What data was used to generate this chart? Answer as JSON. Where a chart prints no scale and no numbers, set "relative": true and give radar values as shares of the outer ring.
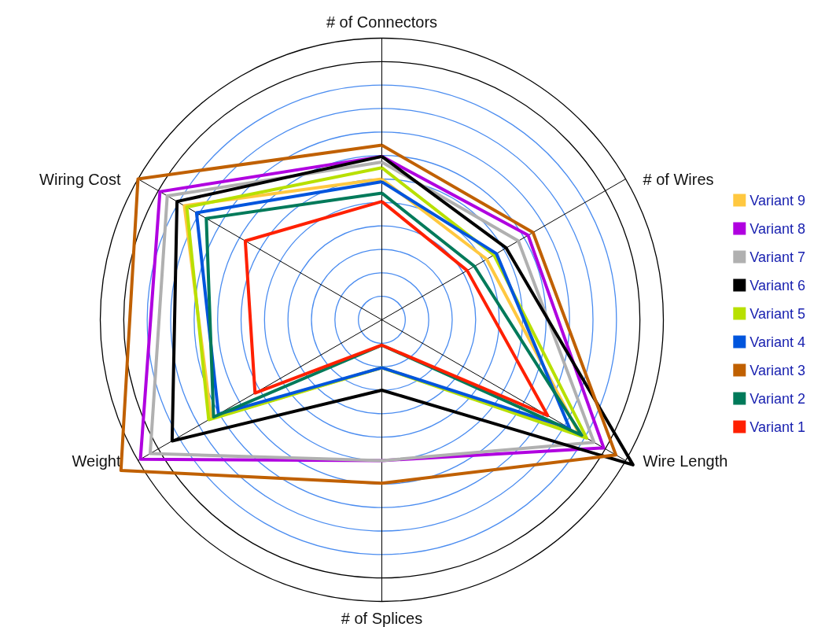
{
  "chart_data": {
    "type": "radar",
    "relative": true,
    "marker": "none",
    "line_style": "solid",
    "legend": "right",
    "categories": [
      "# of Connectors",
      "# of Wires",
      "Wire Length",
      "# of Splices",
      "Weight",
      "Wiring Cost"
    ],
    "series": [
      {
        "name": "Variant 9",
        "color": "#ffc840",
        "values": [
          0.5,
          0.43,
          0.81,
          0.17,
          0.7,
          0.81
        ]
      },
      {
        "name": "Variant 8",
        "color": "#b000e0",
        "values": [
          0.58,
          0.6,
          0.91,
          0.5,
          0.99,
          0.91
        ]
      },
      {
        "name": "Variant 7",
        "color": "#b0b0b0",
        "values": [
          0.56,
          0.56,
          0.87,
          0.5,
          0.95,
          0.88
        ]
      },
      {
        "name": "Variant 6",
        "color": "#000000",
        "values": [
          0.58,
          0.51,
          1.03,
          0.25,
          0.86,
          0.84
        ]
      },
      {
        "name": "Variant 5",
        "color": "#b8e000",
        "values": [
          0.54,
          0.46,
          0.84,
          0.17,
          0.71,
          0.8
        ]
      },
      {
        "name": "Variant 4",
        "color": "#0055dd",
        "values": [
          0.49,
          0.47,
          0.77,
          0.17,
          0.67,
          0.76
        ]
      },
      {
        "name": "Variant 3",
        "color": "#c06000",
        "values": [
          0.62,
          0.62,
          0.96,
          0.58,
          1.07,
          1.0
        ]
      },
      {
        "name": "Variant 2",
        "color": "#007a5a",
        "values": [
          0.45,
          0.38,
          0.82,
          0.09,
          0.69,
          0.72
        ]
      },
      {
        "name": "Variant 1",
        "color": "#ff2000",
        "values": [
          0.42,
          0.35,
          0.68,
          0.09,
          0.52,
          0.56
        ]
      }
    ]
  }
}
